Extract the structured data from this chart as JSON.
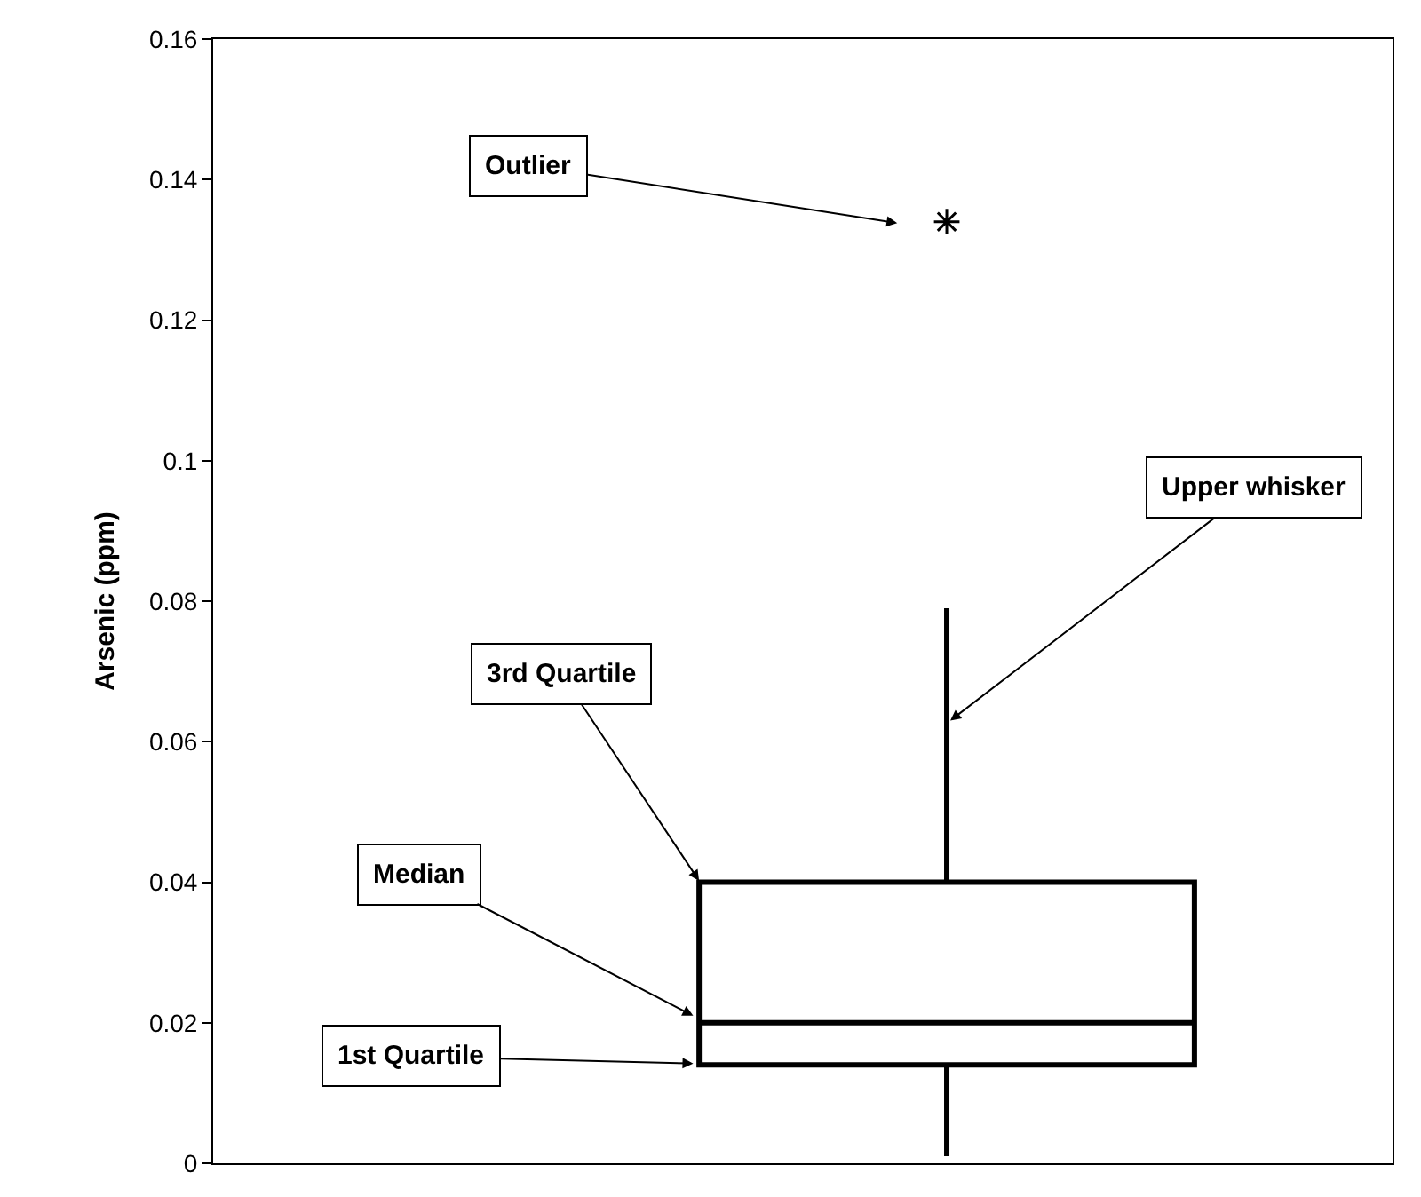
{
  "chart_data": {
    "type": "box",
    "categories": [
      null
    ],
    "boxes": [
      {
        "low": 0.001,
        "q1": 0.014,
        "median": 0.02,
        "q3": 0.04,
        "high": 0.079,
        "outliers": [
          0.134
        ]
      }
    ],
    "color": "#000000",
    "ylabel": "Arsenic (ppm)",
    "ylim": [
      0,
      0.16
    ],
    "yticks": [
      0,
      0.02,
      0.04,
      0.06,
      0.08,
      {
        "value": 0.1,
        "label": "0.1"
      },
      0.12,
      0.14,
      0.16
    ],
    "tick_labels": "y",
    "annotations": [
      "Outlier",
      "Upper whisker",
      "3rd Quartile",
      "Median",
      "1st Quartile"
    ]
  }
}
